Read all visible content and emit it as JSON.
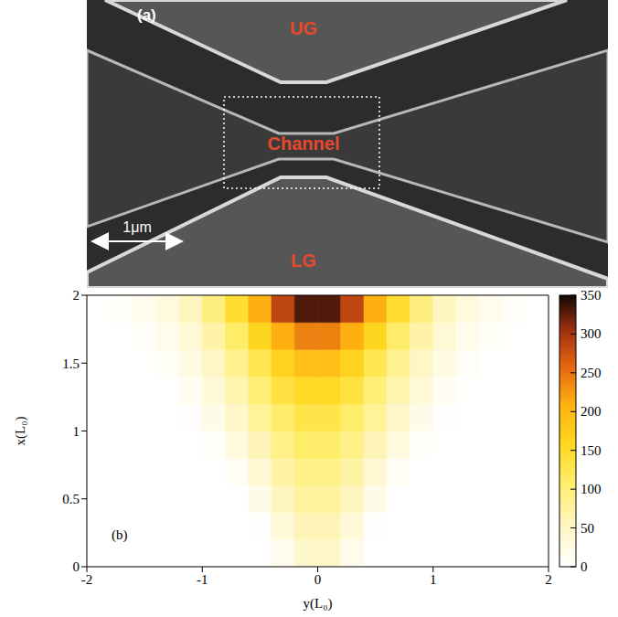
{
  "image_panel": {
    "label": "(a)",
    "texts": {
      "upper_gate": "UG",
      "channel": "Channel",
      "lower_gate": "LG",
      "scale_bar": "1μm"
    }
  },
  "chart_data": {
    "type": "heatmap",
    "label": "(b)",
    "xlabel": "y(L₀)",
    "ylabel": "x(L₀)",
    "xlim": [
      -2,
      2
    ],
    "xticks": [
      -2,
      -1,
      0,
      1,
      2
    ],
    "ylim": [
      0,
      2
    ],
    "yticks": [
      0,
      0.5,
      1,
      1.5,
      2
    ],
    "cells": {
      "columns": [
        -1.9,
        -1.7,
        -1.5,
        -1.3,
        -1.1,
        -0.9,
        -0.7,
        -0.5,
        -0.3,
        -0.1,
        0.1,
        0.3,
        0.5,
        0.7,
        0.9,
        1.1,
        1.3,
        1.5,
        1.7,
        1.9
      ],
      "rows": [
        0.1,
        0.3,
        0.5,
        0.7,
        0.9,
        1.1,
        1.3,
        1.5,
        1.7,
        1.9
      ],
      "values": [
        [
          0,
          0,
          0,
          0,
          0,
          0,
          0,
          0,
          15,
          45,
          45,
          15,
          0,
          0,
          0,
          0,
          0,
          0,
          0,
          0
        ],
        [
          0,
          0,
          0,
          0,
          0,
          0,
          0,
          3,
          35,
          60,
          60,
          35,
          3,
          0,
          0,
          0,
          0,
          0,
          0,
          0
        ],
        [
          0,
          0,
          0,
          0,
          0,
          0,
          0,
          20,
          55,
          75,
          75,
          55,
          20,
          0,
          0,
          0,
          0,
          0,
          0,
          0
        ],
        [
          0,
          0,
          0,
          0,
          0,
          0,
          10,
          40,
          72,
          90,
          90,
          72,
          40,
          10,
          0,
          0,
          0,
          0,
          0,
          0
        ],
        [
          0,
          0,
          0,
          0,
          0,
          5,
          30,
          60,
          90,
          110,
          110,
          90,
          60,
          30,
          5,
          0,
          0,
          0,
          0,
          0
        ],
        [
          0,
          0,
          0,
          0,
          3,
          20,
          48,
          80,
          110,
          130,
          130,
          110,
          80,
          48,
          20,
          3,
          0,
          0,
          0,
          0
        ],
        [
          0,
          0,
          0,
          2,
          12,
          35,
          65,
          100,
          135,
          155,
          155,
          135,
          100,
          65,
          35,
          12,
          2,
          0,
          0,
          0
        ],
        [
          0,
          0,
          2,
          8,
          25,
          50,
          85,
          125,
          165,
          190,
          190,
          165,
          125,
          85,
          50,
          25,
          8,
          2,
          0,
          0
        ],
        [
          0,
          2,
          7,
          18,
          38,
          70,
          110,
          160,
          210,
          240,
          240,
          210,
          160,
          110,
          70,
          38,
          18,
          7,
          2,
          0
        ],
        [
          2,
          6,
          14,
          30,
          55,
          95,
          145,
          210,
          285,
          330,
          330,
          285,
          210,
          145,
          95,
          55,
          30,
          14,
          6,
          2
        ]
      ]
    },
    "colorbar": {
      "range": [
        0,
        350
      ],
      "ticks": [
        0,
        50,
        100,
        150,
        200,
        250,
        300,
        350
      ]
    }
  }
}
